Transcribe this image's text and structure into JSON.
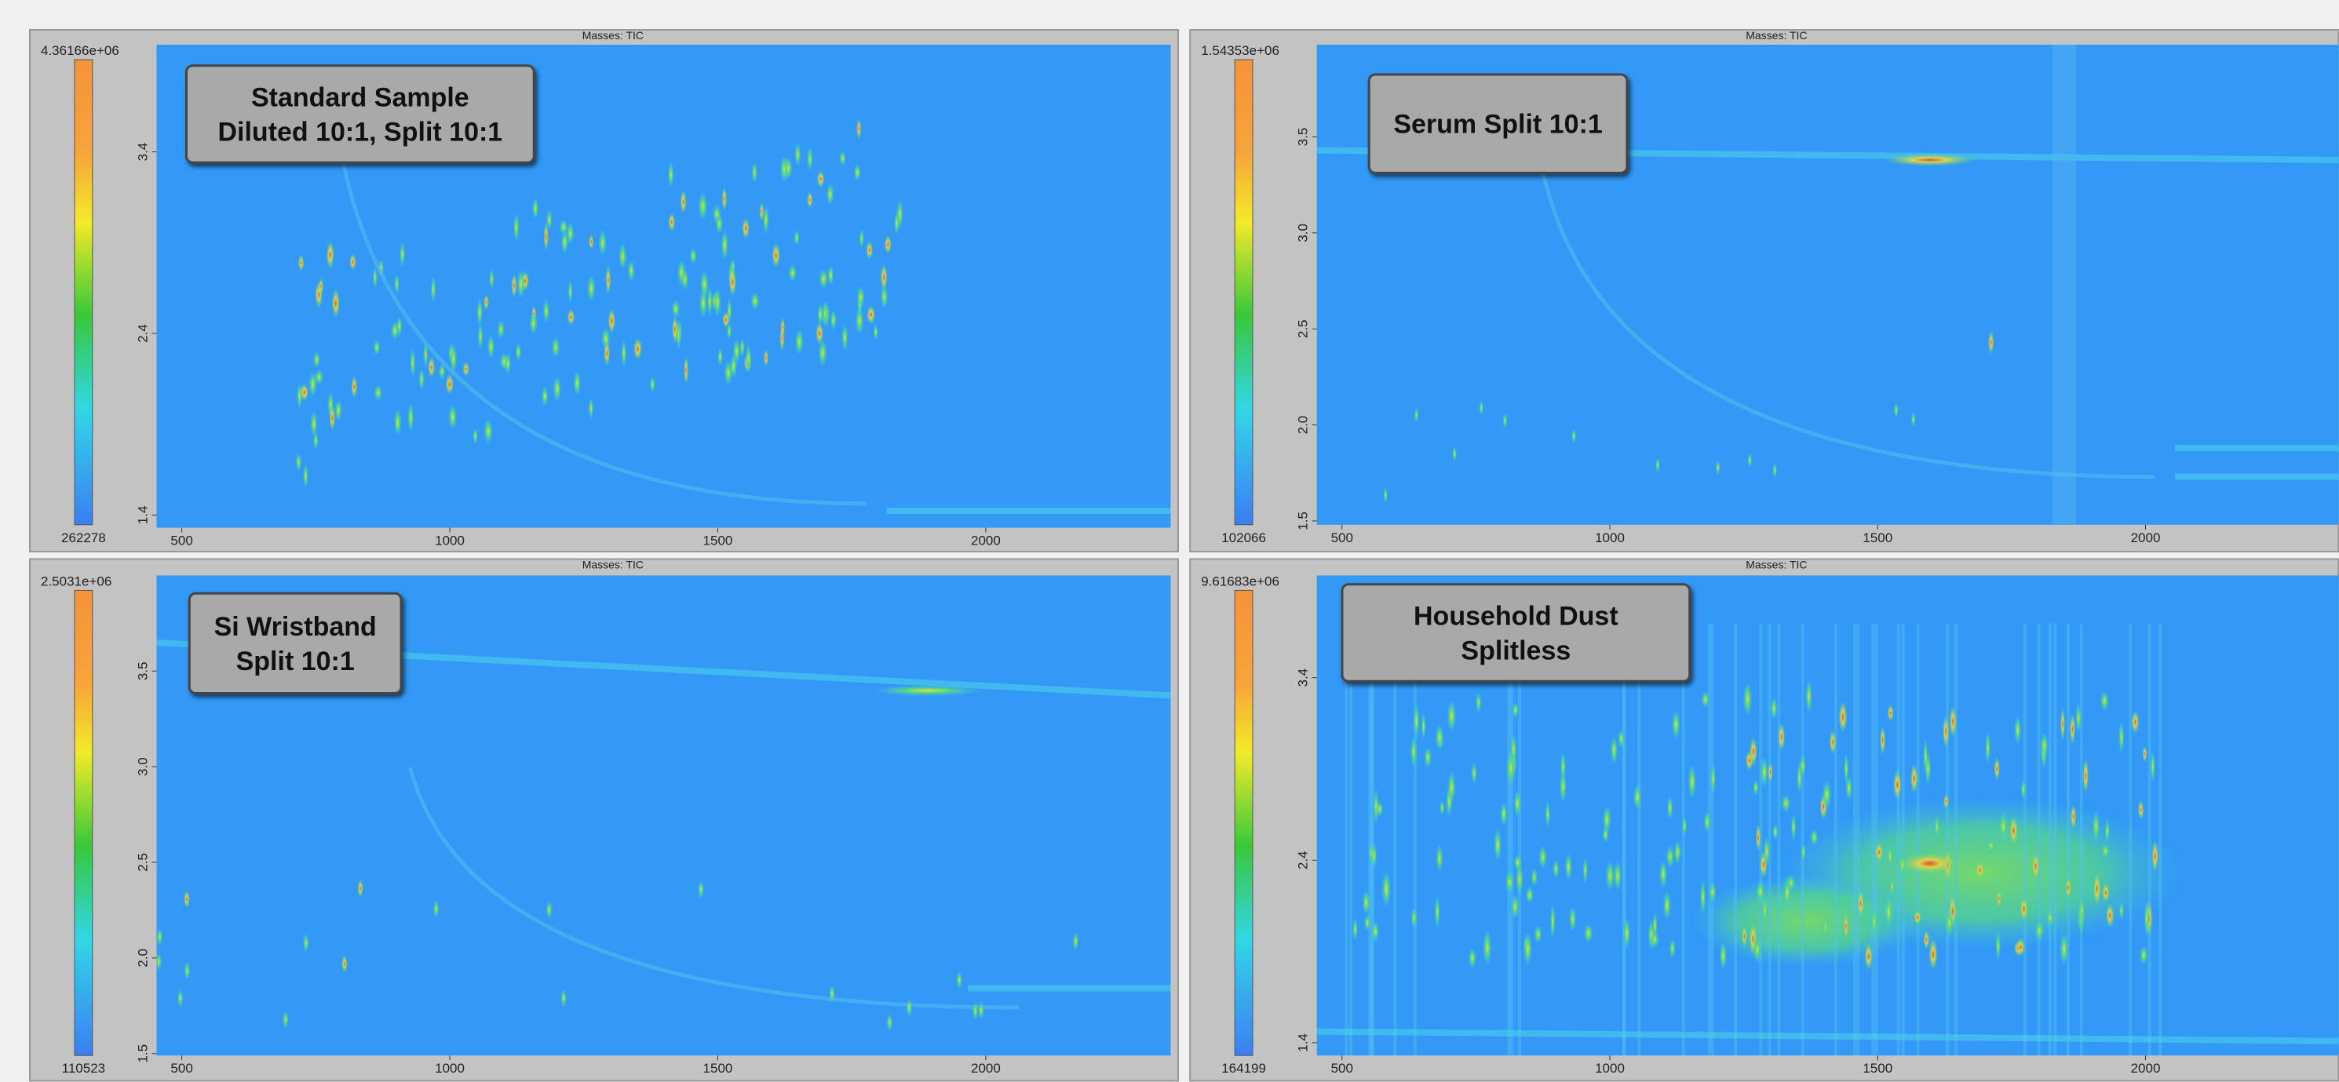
{
  "panels": [
    {
      "header": "Masses: TIC",
      "box_text": [
        "Standard Sample",
        "Diluted 10:1, Split 10:1"
      ],
      "colorbar": {
        "max": "4.36166e+06",
        "min": "262278"
      },
      "xlim": [
        453,
        2345
      ],
      "ylim": [
        1.33,
        3.99
      ],
      "xticks": [
        500,
        1000,
        1500,
        2000
      ],
      "yticks": [
        1.4,
        2.4,
        3.4
      ]
    },
    {
      "header": "Masses: TIC",
      "box_text": [
        "Serum Split 10:1"
      ],
      "colorbar": {
        "max": "1.54353e+06",
        "min": "102066"
      },
      "xlim": [
        453,
        2360
      ],
      "ylim": [
        1.48,
        3.98
      ],
      "xticks": [
        500,
        1000,
        1500,
        2000
      ],
      "yticks": [
        1.5,
        {
          "value": 2,
          "label": "2.0"
        },
        2.5,
        {
          "value": 3,
          "label": "3.0"
        },
        3.5
      ]
    },
    {
      "header": "Masses: TIC",
      "box_text": [
        "Si Wristband",
        "Split 10:1"
      ],
      "colorbar": {
        "max": "2.5031e+06",
        "min": "110523"
      },
      "xlim": [
        453,
        2345
      ],
      "ylim": [
        1.49,
        4.0
      ],
      "xticks": [
        500,
        1000,
        1500,
        2000
      ],
      "yticks": [
        1.5,
        {
          "value": 2,
          "label": "2.0"
        },
        2.5,
        {
          "value": 3,
          "label": "3.0"
        },
        3.5
      ]
    },
    {
      "header": "Masses: TIC",
      "box_text": [
        "Household Dust",
        "Splitless"
      ],
      "colorbar": {
        "max": "9.61683e+06",
        "min": "164199"
      },
      "xlim": [
        453,
        2360
      ],
      "ylim": [
        1.33,
        3.96
      ],
      "xticks": [
        500,
        1000,
        1500,
        2000
      ],
      "yticks": [
        1.4,
        2.4,
        3.4
      ]
    }
  ]
}
